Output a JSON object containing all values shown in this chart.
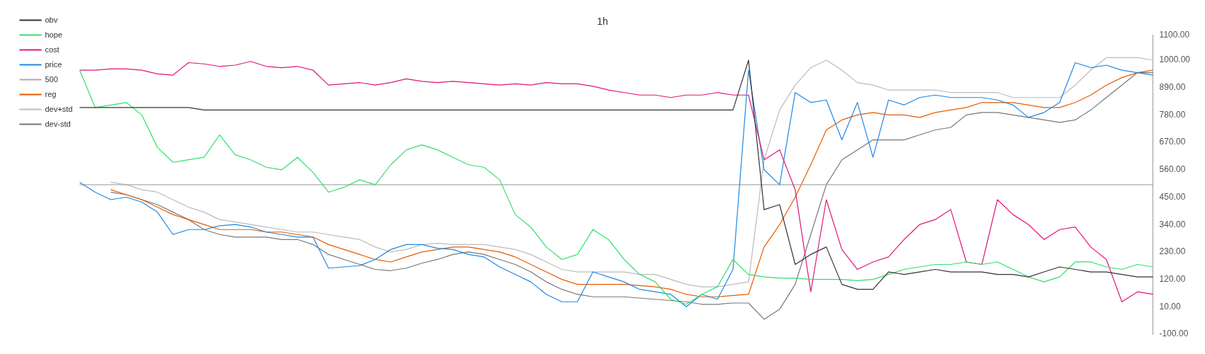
{
  "chart_data": {
    "type": "line",
    "title": "1h",
    "categories": [
      null,
      null,
      null,
      null,
      null,
      null,
      null,
      null,
      null,
      null,
      null,
      null,
      null,
      null,
      null,
      null,
      null,
      null,
      null,
      null,
      null,
      null,
      null,
      null,
      null,
      null,
      null,
      null,
      null,
      null,
      null,
      null,
      null,
      null,
      null,
      null,
      null,
      null,
      null,
      null,
      null,
      null,
      null,
      null,
      null,
      null,
      null,
      null,
      null,
      null,
      null,
      null,
      null,
      null,
      null,
      null,
      null,
      null,
      null,
      null,
      null,
      null,
      null,
      null,
      null,
      null,
      null,
      null,
      null,
      null
    ],
    "series": [
      {
        "name": "obv",
        "color": "#333333",
        "values": [
          810,
          810,
          810,
          810,
          810,
          810,
          810,
          810,
          800,
          800,
          800,
          800,
          800,
          800,
          800,
          800,
          800,
          800,
          800,
          800,
          800,
          800,
          800,
          800,
          800,
          800,
          800,
          800,
          800,
          800,
          800,
          800,
          800,
          800,
          800,
          800,
          800,
          800,
          800,
          800,
          800,
          800,
          800,
          1000,
          400,
          420,
          180,
          220,
          250,
          100,
          80,
          80,
          150,
          140,
          150,
          160,
          150,
          150,
          150,
          140,
          140,
          130,
          150,
          170,
          160,
          150,
          150,
          140,
          130,
          130
        ]
      },
      {
        "name": "hope",
        "color": "#2ee06a",
        "values": [
          960,
          810,
          820,
          830,
          780,
          650,
          590,
          600,
          610,
          700,
          620,
          600,
          570,
          560,
          610,
          550,
          470,
          490,
          520,
          500,
          580,
          640,
          660,
          640,
          610,
          580,
          570,
          520,
          380,
          330,
          250,
          200,
          220,
          320,
          280,
          200,
          140,
          110,
          40,
          20,
          60,
          90,
          200,
          140,
          130,
          125,
          125,
          120,
          120,
          120,
          115,
          120,
          140,
          160,
          170,
          180,
          180,
          190,
          180,
          190,
          160,
          130,
          110,
          130,
          190,
          190,
          170,
          160,
          180,
          170
        ]
      },
      {
        "name": "cost",
        "color": "#e0157a",
        "values": [
          960,
          960,
          965,
          965,
          960,
          945,
          940,
          990,
          985,
          975,
          980,
          995,
          975,
          970,
          975,
          960,
          900,
          905,
          910,
          900,
          910,
          925,
          915,
          910,
          915,
          910,
          905,
          900,
          905,
          900,
          910,
          905,
          905,
          895,
          880,
          870,
          860,
          860,
          850,
          860,
          860,
          870,
          860,
          860,
          600,
          640,
          480,
          70,
          440,
          240,
          160,
          190,
          210,
          280,
          340,
          360,
          400,
          190,
          180,
          440,
          380,
          340,
          280,
          320,
          330,
          250,
          200,
          30,
          70,
          60
        ]
      },
      {
        "name": "price",
        "color": "#1e88e5",
        "values": [
          510,
          470,
          440,
          450,
          430,
          390,
          300,
          320,
          320,
          335,
          340,
          330,
          310,
          300,
          290,
          290,
          165,
          170,
          175,
          200,
          240,
          260,
          260,
          245,
          240,
          220,
          210,
          170,
          140,
          110,
          60,
          30,
          30,
          150,
          130,
          110,
          80,
          70,
          60,
          10,
          60,
          40,
          160,
          960,
          560,
          500,
          870,
          830,
          840,
          680,
          830,
          610,
          840,
          820,
          850,
          860,
          850,
          850,
          850,
          840,
          820,
          770,
          790,
          830,
          990,
          970,
          980,
          960,
          950,
          940
        ]
      },
      {
        "name": "500",
        "color": "#aaaaaa",
        "values": [
          500,
          500,
          500,
          500,
          500,
          500,
          500,
          500,
          500,
          500,
          500,
          500,
          500,
          500,
          500,
          500,
          500,
          500,
          500,
          500,
          500,
          500,
          500,
          500,
          500,
          500,
          500,
          500,
          500,
          500,
          500,
          500,
          500,
          500,
          500,
          500,
          500,
          500,
          500,
          500,
          500,
          500,
          500,
          500,
          500,
          500,
          500,
          500,
          500,
          500,
          500,
          500,
          500,
          500,
          500,
          500,
          500,
          500,
          500,
          500,
          500,
          500,
          500,
          500,
          500,
          500,
          500,
          500,
          500,
          500
        ]
      },
      {
        "name": "reg",
        "color": "#e65c00",
        "values": [
          null,
          null,
          480,
          460,
          440,
          410,
          380,
          360,
          340,
          320,
          320,
          320,
          310,
          310,
          300,
          290,
          260,
          240,
          220,
          200,
          190,
          210,
          230,
          240,
          250,
          250,
          240,
          230,
          210,
          180,
          150,
          120,
          100,
          100,
          100,
          100,
          95,
          90,
          80,
          60,
          50,
          50,
          55,
          60,
          250,
          340,
          450,
          580,
          720,
          760,
          780,
          790,
          780,
          780,
          770,
          790,
          800,
          810,
          830,
          830,
          830,
          820,
          810,
          810,
          830,
          860,
          900,
          930,
          950,
          960
        ]
      },
      {
        "name": "dev+std",
        "color": "#bbbbbb",
        "values": [
          null,
          null,
          510,
          500,
          480,
          470,
          440,
          410,
          390,
          360,
          350,
          340,
          330,
          320,
          310,
          310,
          300,
          290,
          280,
          250,
          230,
          240,
          260,
          265,
          260,
          260,
          260,
          250,
          240,
          220,
          190,
          160,
          150,
          150,
          150,
          150,
          140,
          140,
          120,
          100,
          90,
          90,
          100,
          110,
          600,
          800,
          900,
          970,
          1000,
          960,
          910,
          900,
          880,
          880,
          880,
          880,
          870,
          870,
          870,
          870,
          850,
          850,
          850,
          850,
          900,
          960,
          1010,
          1010,
          1010,
          1000
        ]
      },
      {
        "name": "dev-std",
        "color": "#777777",
        "values": [
          null,
          null,
          470,
          460,
          440,
          420,
          390,
          360,
          320,
          300,
          290,
          290,
          290,
          280,
          280,
          260,
          220,
          200,
          180,
          160,
          155,
          165,
          185,
          200,
          220,
          230,
          220,
          200,
          180,
          150,
          110,
          80,
          60,
          50,
          50,
          50,
          45,
          40,
          35,
          30,
          20,
          20,
          25,
          25,
          -40,
          0,
          100,
          300,
          500,
          600,
          640,
          680,
          680,
          680,
          700,
          720,
          730,
          780,
          790,
          790,
          780,
          770,
          760,
          750,
          760,
          800,
          850,
          900,
          950,
          950
        ]
      }
    ],
    "ylim": [
      -100,
      1100
    ],
    "yticks": [
      {
        "value": -100,
        "label": "-100.00"
      },
      {
        "value": 10,
        "label": "10.00"
      },
      {
        "value": 120,
        "label": "120.00"
      },
      {
        "value": 230,
        "label": "230.00"
      },
      {
        "value": 340,
        "label": "340.00"
      },
      {
        "value": 450,
        "label": "450.00"
      },
      {
        "value": 560,
        "label": "560.00"
      },
      {
        "value": 670,
        "label": "670.00"
      },
      {
        "value": 780,
        "label": "780.00"
      },
      {
        "value": 890,
        "label": "890.00"
      },
      {
        "value": 1000,
        "label": "1000.00"
      },
      {
        "value": 1100,
        "label": "1100.00"
      }
    ],
    "tick_labels": "y",
    "legend": "left",
    "marker": "none",
    "line_style": "solid"
  }
}
